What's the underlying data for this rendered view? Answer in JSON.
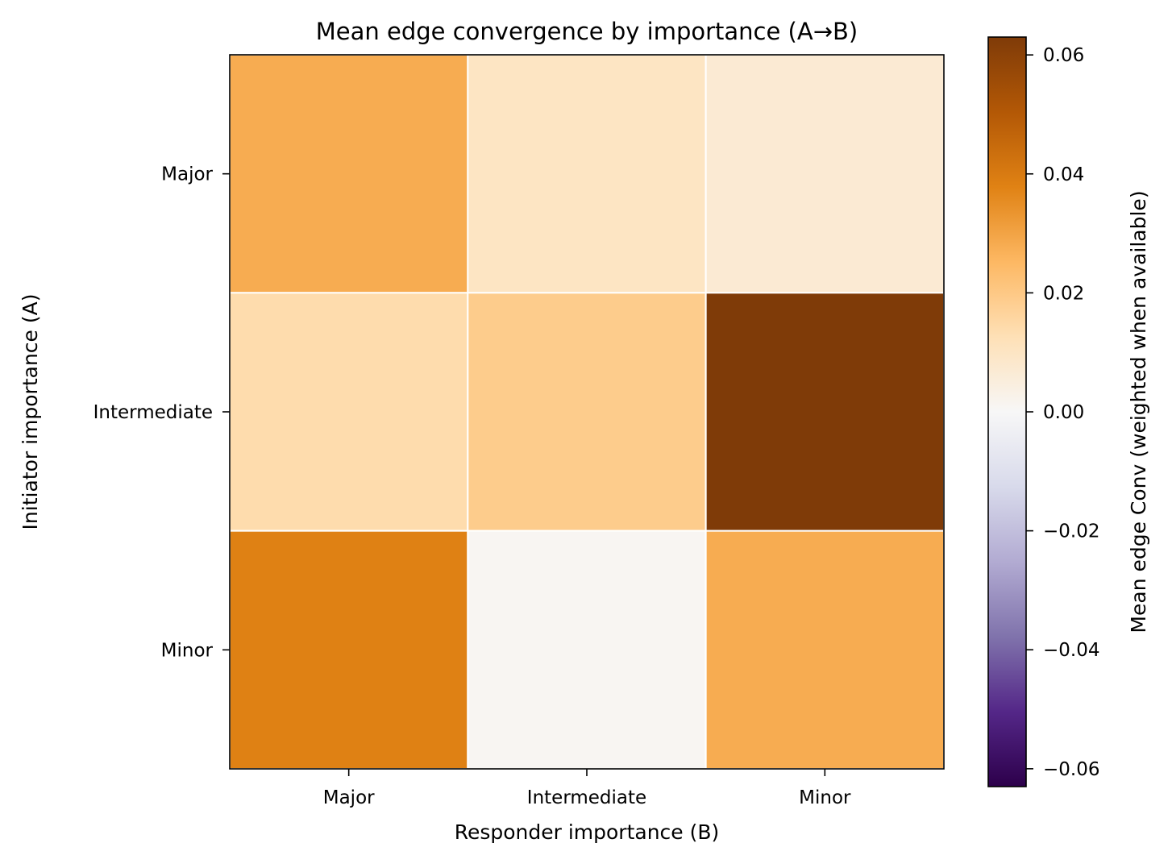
{
  "chart_data": {
    "type": "heatmap",
    "title": "Mean edge convergence by importance (A→B)",
    "xlabel": "Responder importance (B)",
    "ylabel": "Initiator importance (A)",
    "x_categories": [
      "Major",
      "Intermediate",
      "Minor"
    ],
    "y_categories": [
      "Major",
      "Intermediate",
      "Minor"
    ],
    "values": [
      [
        0.028,
        0.01,
        0.007
      ],
      [
        0.014,
        0.019,
        0.063
      ],
      [
        0.038,
        0.001,
        0.028
      ]
    ],
    "colorbar": {
      "label": "Mean edge Conv (weighted when available)",
      "vmin": -0.063,
      "vmax": 0.063,
      "ticks": [
        -0.06,
        -0.04,
        -0.02,
        0.0,
        0.02,
        0.04,
        0.06
      ],
      "tick_labels": [
        "−0.06",
        "−0.04",
        "−0.02",
        "0.00",
        "0.02",
        "0.04",
        "0.06"
      ],
      "colormap": "PuOr_r",
      "colormap_stops": [
        "#2d004b",
        "#542788",
        "#8073ac",
        "#b2abd2",
        "#d8daeb",
        "#f7f7f7",
        "#fee0b6",
        "#fdb863",
        "#e08214",
        "#b35806",
        "#7f3b08"
      ]
    },
    "grid": false,
    "cell_gridlines_color": "#ffffff"
  }
}
